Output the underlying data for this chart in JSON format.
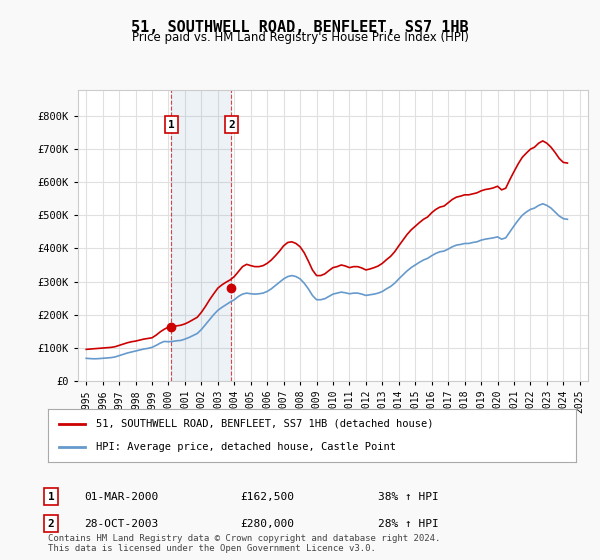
{
  "title": "51, SOUTHWELL ROAD, BENFLEET, SS7 1HB",
  "subtitle": "Price paid vs. HM Land Registry's House Price Index (HPI)",
  "ylabel_ticks": [
    "£0",
    "£100K",
    "£200K",
    "£300K",
    "£400K",
    "£500K",
    "£600K",
    "£700K",
    "£800K"
  ],
  "ytick_values": [
    0,
    100000,
    200000,
    300000,
    400000,
    500000,
    600000,
    700000,
    800000
  ],
  "ylim": [
    0,
    880000
  ],
  "xlim_start": 1994.5,
  "xlim_end": 2025.5,
  "bg_color": "#f9f9f9",
  "plot_bg_color": "#ffffff",
  "grid_color": "#e0e0e0",
  "red_line_color": "#cc0000",
  "blue_line_color": "#6699cc",
  "transaction1": {
    "date_num": 2000.167,
    "price": 162500,
    "label": "1",
    "pct": "38% ↑ HPI",
    "date_str": "01-MAR-2000"
  },
  "transaction2": {
    "date_num": 2003.83,
    "price": 280000,
    "label": "2",
    "pct": "28% ↑ HPI",
    "date_str": "28-OCT-2003"
  },
  "legend_line1": "51, SOUTHWELL ROAD, BENFLEET, SS7 1HB (detached house)",
  "legend_line2": "HPI: Average price, detached house, Castle Point",
  "footer": "Contains HM Land Registry data © Crown copyright and database right 2024.\nThis data is licensed under the Open Government Licence v3.0.",
  "table_rows": [
    {
      "num": "1",
      "date": "01-MAR-2000",
      "price": "£162,500",
      "pct": "38% ↑ HPI"
    },
    {
      "num": "2",
      "date": "28-OCT-2003",
      "price": "£280,000",
      "pct": "28% ↑ HPI"
    }
  ],
  "hpi_data": {
    "years": [
      1995.0,
      1995.25,
      1995.5,
      1995.75,
      1996.0,
      1996.25,
      1996.5,
      1996.75,
      1997.0,
      1997.25,
      1997.5,
      1997.75,
      1998.0,
      1998.25,
      1998.5,
      1998.75,
      1999.0,
      1999.25,
      1999.5,
      1999.75,
      2000.0,
      2000.25,
      2000.5,
      2000.75,
      2001.0,
      2001.25,
      2001.5,
      2001.75,
      2002.0,
      2002.25,
      2002.5,
      2002.75,
      2003.0,
      2003.25,
      2003.5,
      2003.75,
      2004.0,
      2004.25,
      2004.5,
      2004.75,
      2005.0,
      2005.25,
      2005.5,
      2005.75,
      2006.0,
      2006.25,
      2006.5,
      2006.75,
      2007.0,
      2007.25,
      2007.5,
      2007.75,
      2008.0,
      2008.25,
      2008.5,
      2008.75,
      2009.0,
      2009.25,
      2009.5,
      2009.75,
      2010.0,
      2010.25,
      2010.5,
      2010.75,
      2011.0,
      2011.25,
      2011.5,
      2011.75,
      2012.0,
      2012.25,
      2012.5,
      2012.75,
      2013.0,
      2013.25,
      2013.5,
      2013.75,
      2014.0,
      2014.25,
      2014.5,
      2014.75,
      2015.0,
      2015.25,
      2015.5,
      2015.75,
      2016.0,
      2016.25,
      2016.5,
      2016.75,
      2017.0,
      2017.25,
      2017.5,
      2017.75,
      2018.0,
      2018.25,
      2018.5,
      2018.75,
      2019.0,
      2019.25,
      2019.5,
      2019.75,
      2020.0,
      2020.25,
      2020.5,
      2020.75,
      2021.0,
      2021.25,
      2021.5,
      2021.75,
      2022.0,
      2022.25,
      2022.5,
      2022.75,
      2023.0,
      2023.25,
      2023.5,
      2023.75,
      2024.0,
      2024.25
    ],
    "values": [
      68000,
      67000,
      66500,
      67000,
      68000,
      69000,
      70000,
      72000,
      76000,
      80000,
      84000,
      87000,
      90000,
      93000,
      96000,
      98000,
      101000,
      107000,
      114000,
      119000,
      118000,
      119000,
      121000,
      122000,
      126000,
      131000,
      137000,
      143000,
      155000,
      170000,
      185000,
      200000,
      213000,
      222000,
      230000,
      238000,
      245000,
      255000,
      262000,
      265000,
      263000,
      262000,
      263000,
      265000,
      270000,
      278000,
      288000,
      298000,
      308000,
      315000,
      318000,
      315000,
      308000,
      295000,
      278000,
      258000,
      245000,
      245000,
      248000,
      255000,
      262000,
      265000,
      268000,
      266000,
      263000,
      265000,
      265000,
      262000,
      258000,
      260000,
      262000,
      265000,
      270000,
      278000,
      285000,
      295000,
      308000,
      320000,
      332000,
      342000,
      350000,
      358000,
      365000,
      370000,
      378000,
      385000,
      390000,
      392000,
      398000,
      405000,
      410000,
      412000,
      415000,
      415000,
      418000,
      420000,
      425000,
      428000,
      430000,
      432000,
      435000,
      428000,
      432000,
      450000,
      468000,
      485000,
      500000,
      510000,
      518000,
      522000,
      530000,
      535000,
      530000,
      522000,
      510000,
      498000,
      490000,
      488000
    ]
  },
  "price_data": {
    "years": [
      1995.0,
      1995.25,
      1995.5,
      1995.75,
      1996.0,
      1996.25,
      1996.5,
      1996.75,
      1997.0,
      1997.25,
      1997.5,
      1997.75,
      1998.0,
      1998.25,
      1998.5,
      1998.75,
      1999.0,
      1999.25,
      1999.5,
      1999.75,
      2000.0,
      2000.25,
      2000.5,
      2000.75,
      2001.0,
      2001.25,
      2001.5,
      2001.75,
      2002.0,
      2002.25,
      2002.5,
      2002.75,
      2003.0,
      2003.25,
      2003.5,
      2003.75,
      2004.0,
      2004.25,
      2004.5,
      2004.75,
      2005.0,
      2005.25,
      2005.5,
      2005.75,
      2006.0,
      2006.25,
      2006.5,
      2006.75,
      2007.0,
      2007.25,
      2007.5,
      2007.75,
      2008.0,
      2008.25,
      2008.5,
      2008.75,
      2009.0,
      2009.25,
      2009.5,
      2009.75,
      2010.0,
      2010.25,
      2010.5,
      2010.75,
      2011.0,
      2011.25,
      2011.5,
      2011.75,
      2012.0,
      2012.25,
      2012.5,
      2012.75,
      2013.0,
      2013.25,
      2013.5,
      2013.75,
      2014.0,
      2014.25,
      2014.5,
      2014.75,
      2015.0,
      2015.25,
      2015.5,
      2015.75,
      2016.0,
      2016.25,
      2016.5,
      2016.75,
      2017.0,
      2017.25,
      2017.5,
      2017.75,
      2018.0,
      2018.25,
      2018.5,
      2018.75,
      2019.0,
      2019.25,
      2019.5,
      2019.75,
      2020.0,
      2020.25,
      2020.5,
      2020.75,
      2021.0,
      2021.25,
      2021.5,
      2021.75,
      2022.0,
      2022.25,
      2022.5,
      2022.75,
      2023.0,
      2023.25,
      2023.5,
      2023.75,
      2024.0,
      2024.25
    ],
    "values": [
      95000,
      96000,
      97000,
      98000,
      99000,
      100000,
      101000,
      103000,
      107000,
      111000,
      115000,
      118000,
      120000,
      123000,
      126000,
      128000,
      130000,
      138000,
      148000,
      156000,
      162500,
      164000,
      166000,
      168000,
      172000,
      178000,
      185000,
      192000,
      207000,
      225000,
      245000,
      263000,
      280000,
      290000,
      298000,
      305000,
      315000,
      330000,
      345000,
      352000,
      348000,
      345000,
      345000,
      348000,
      355000,
      365000,
      378000,
      392000,
      408000,
      418000,
      420000,
      415000,
      405000,
      387000,
      362000,
      335000,
      318000,
      318000,
      323000,
      333000,
      342000,
      345000,
      350000,
      347000,
      342000,
      345000,
      345000,
      341000,
      335000,
      338000,
      342000,
      347000,
      355000,
      366000,
      376000,
      390000,
      408000,
      425000,
      442000,
      456000,
      467000,
      478000,
      488000,
      495000,
      508000,
      518000,
      525000,
      528000,
      538000,
      548000,
      555000,
      558000,
      562000,
      562000,
      565000,
      568000,
      574000,
      578000,
      580000,
      583000,
      588000,
      577000,
      582000,
      608000,
      632000,
      655000,
      675000,
      688000,
      700000,
      706000,
      718000,
      725000,
      718000,
      706000,
      690000,
      672000,
      660000,
      658000
    ]
  }
}
